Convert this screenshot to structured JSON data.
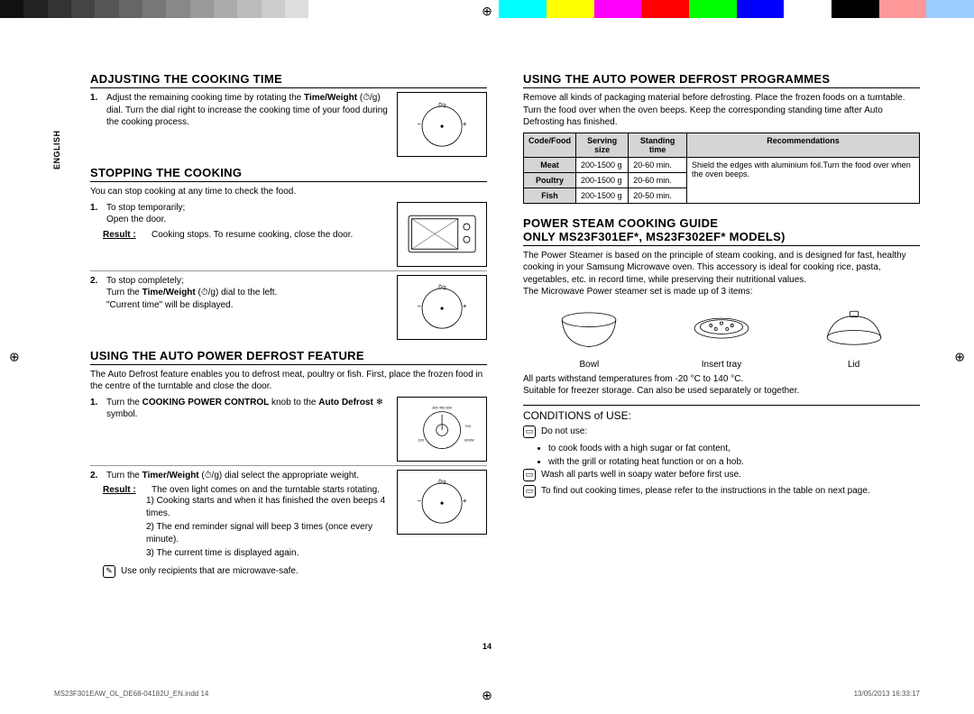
{
  "lang_tab": "ENGLISH",
  "page_number": "14",
  "footer_file": "MS23F301EAW_OL_DE68-04182U_EN.indd   14",
  "footer_date": "13/05/2013   16:33:17",
  "color_bar": [
    "#111",
    "#222",
    "#333",
    "#444",
    "#555",
    "#666",
    "#777",
    "#888",
    "#999",
    "#aaa",
    "#bbb",
    "#ccc",
    "#ddd",
    "#fff",
    "#fff",
    "#fff",
    "#fff",
    "#fff",
    "#fff",
    "#fff",
    "#fff",
    "#0ff",
    "#0ff",
    "#ff0",
    "#ff0",
    "#f0f",
    "#f0f",
    "#f00",
    "#f00",
    "#0f0",
    "#0f0",
    "#00f",
    "#00f",
    "#fff",
    "#fff",
    "#000",
    "#000",
    "#f99",
    "#f99",
    "#9cf",
    "#9cf"
  ],
  "left": {
    "s1": {
      "title": "ADJUSTING THE COOKING TIME",
      "items": [
        {
          "n": "1.",
          "t": "Adjust the remaining cooking time by rotating the <b>Time/Weight</b> (⏱/g) dial. Turn the dial right to increase the cooking time of your food during the cooking process."
        }
      ]
    },
    "s2": {
      "title": "STOPPING THE COOKING",
      "intro": "You can stop cooking at any time to check the food.",
      "items": [
        {
          "n": "1.",
          "t": "To stop temporarily;<br>Open the door.",
          "result_lbl": "Result :",
          "result": "Cooking stops. To resume cooking, close the door."
        },
        {
          "n": "2.",
          "t": "To stop completely;<br>Turn the <b>Time/Weight</b> (⏱/g) dial to the left.<br>\"Current time\" will be displayed."
        }
      ]
    },
    "s3": {
      "title": "USING THE AUTO POWER DEFROST FEATURE",
      "intro": "The Auto Defrost feature enables you to defrost meat, poultry or fish. First, place the frozen food in the centre of the turntable and close the door.",
      "items": [
        {
          "n": "1.",
          "t": "Turn the <b>COOKING POWER CONTROL</b> knob to the <b>Auto Defrost</b> ❄ symbol."
        },
        {
          "n": "2.",
          "t": "Turn the <b>Timer/Weight</b> (⏱/g) dial select the appropriate weight.",
          "result_lbl": "Result :",
          "result": "The oven light comes on and the turntable starts rotating."
        }
      ],
      "sublist": [
        "1)  Cooking starts and when it has finished the oven beeps 4 times.",
        "2)  The end reminder signal will beep 3 times (once every minute).",
        "3)  The current time is displayed again."
      ],
      "note": "Use only recipients that are microwave-safe."
    }
  },
  "right": {
    "s1": {
      "title": "USING THE AUTO POWER DEFROST PROGRAMMES",
      "intro": "Remove all kinds of packaging material before defrosting. Place the frozen foods on a turntable. Turn the food over when the oven beeps. Keep the corresponding standing time after Auto Defrosting has finished.",
      "table": {
        "headers": [
          "Code/Food",
          "Serving size",
          "Standing time",
          "Recommendations"
        ],
        "rows": [
          [
            "Meat",
            "200-1500 g",
            "20-60 min."
          ],
          [
            "Poultry",
            "200-1500 g",
            "20-60 min."
          ],
          [
            "Fish",
            "200-1500 g",
            "20-50 min."
          ]
        ],
        "rec": "Shield the edges with aluminium foil.Turn the food over when the oven beeps."
      }
    },
    "s2": {
      "title1": "POWER STEAM COOKING GUIDE",
      "title2": "ONLY MS23F301EF*, MS23F302EF* MODELS)",
      "intro": "The Power Steamer is based on the principle of steam cooking, and is designed for fast, healthy cooking in your Samsung Microwave oven. This accessory is ideal for cooking rice, pasta, vegetables, etc. in record time, while preserving their nutritional values.<br>The Microwave Power steamer set is made up of 3 items:",
      "steamer": [
        "Bowl",
        "Insert tray",
        "Lid"
      ],
      "after": "All parts withstand temperatures from -20 °C to 140 °C.<br>Suitable for freezer storage. Can also be used separately or together.",
      "cond_title": "CONDITIONS of USE:",
      "notes": [
        {
          "icon": "⊟",
          "t": "Do not use:"
        },
        {
          "bullet": true,
          "t": "to cook foods with a high sugar or fat content,"
        },
        {
          "bullet": true,
          "t": "with the grill or rotating heat function or on a hob."
        },
        {
          "icon": "⊟",
          "t": "Wash all parts well in soapy water before first use."
        },
        {
          "icon": "⊟",
          "t": "To find out cooking times, please refer to the instructions in the table on next page."
        }
      ]
    }
  }
}
